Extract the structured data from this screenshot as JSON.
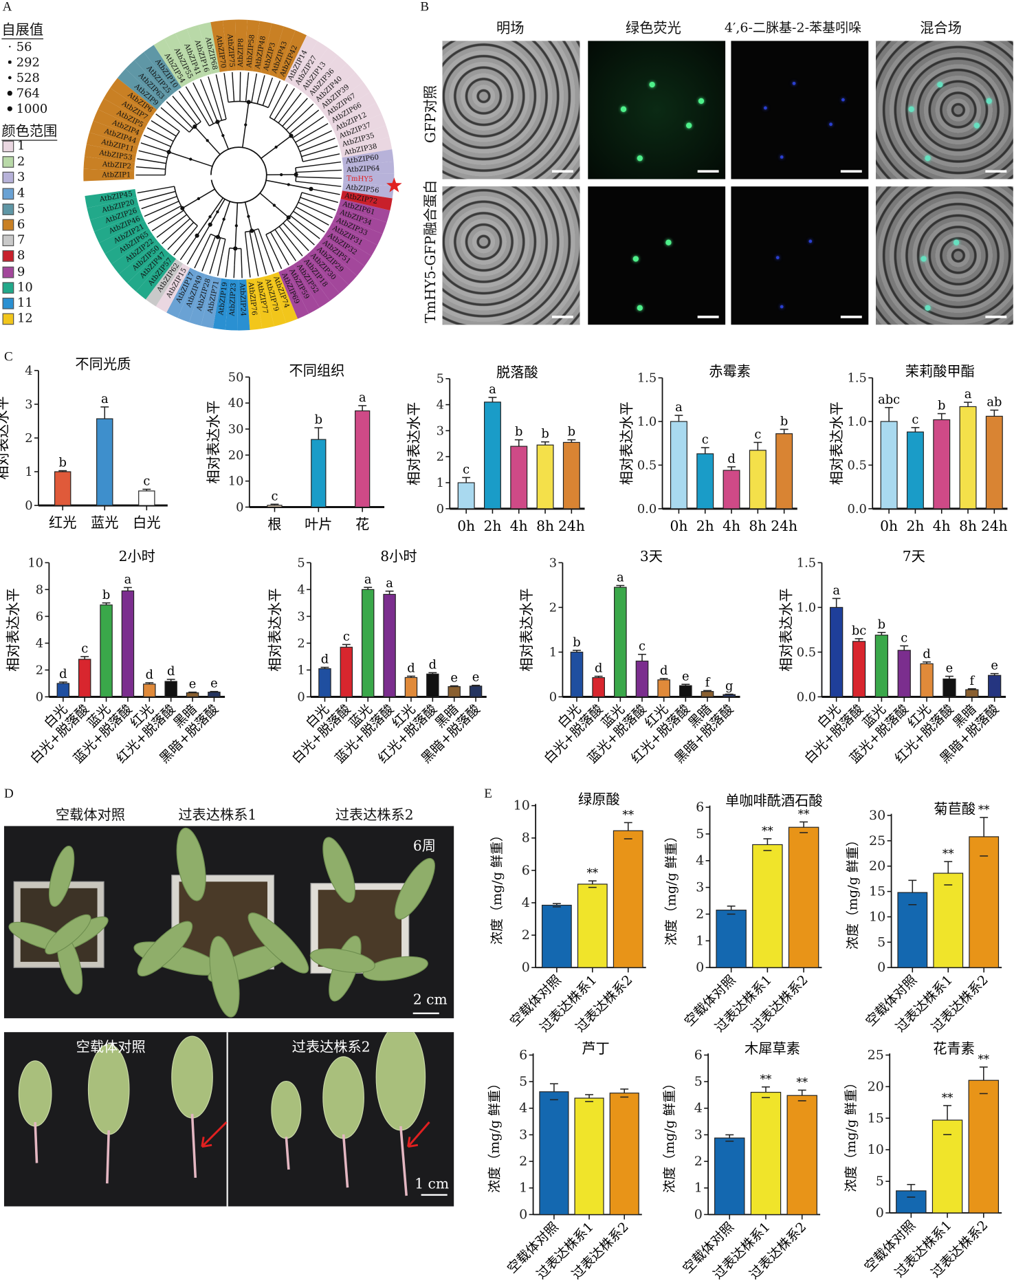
{
  "panel_labels": {
    "a": "A",
    "b": "B",
    "c": "C",
    "d": "D",
    "e": "E"
  },
  "panel_a": {
    "bootstrap_title": "自展值",
    "bootstrap_values": [
      "56",
      "292",
      "528",
      "764",
      "1000"
    ],
    "color_range_title": "颜色范围",
    "clades": [
      {
        "id": "1",
        "color": "#ead7e1"
      },
      {
        "id": "2",
        "color": "#b9d9a8"
      },
      {
        "id": "3",
        "color": "#b7b2d9"
      },
      {
        "id": "4",
        "color": "#6aa2d4"
      },
      {
        "id": "5",
        "color": "#5f97a6"
      },
      {
        "id": "6",
        "color": "#c98024"
      },
      {
        "id": "7",
        "color": "#c9c9c9"
      },
      {
        "id": "8",
        "color": "#c8202b"
      },
      {
        "id": "9",
        "color": "#a3479b"
      },
      {
        "id": "10",
        "color": "#22a98a"
      },
      {
        "id": "11",
        "color": "#2a90d2"
      },
      {
        "id": "12",
        "color": "#f2c61b"
      }
    ],
    "leaves": [
      [
        "AtbZIP1",
        "6"
      ],
      [
        "AtbZIP2",
        "6"
      ],
      [
        "AtbZIP53",
        "6"
      ],
      [
        "AtbZIP11",
        "6"
      ],
      [
        "AtbZIP44",
        "6"
      ],
      [
        "AtbZIP4",
        "6"
      ],
      [
        "AtbZIP5",
        "6"
      ],
      [
        "AtbZIP7",
        "6"
      ],
      [
        "AtbZIP6",
        "6"
      ],
      [
        "AtbZIP9",
        "5"
      ],
      [
        "AtbZIP63",
        "5"
      ],
      [
        "AtbZIP25",
        "5"
      ],
      [
        "AtbZIP10",
        "5"
      ],
      [
        "AtbZIP54",
        "2"
      ],
      [
        "AtbZIP55",
        "2"
      ],
      [
        "AtbZIP41",
        "2"
      ],
      [
        "AtbZIP16",
        "2"
      ],
      [
        "AtbZIP68",
        "2"
      ],
      [
        "AtbZIP70",
        "6"
      ],
      [
        "AtbZIP75",
        "6"
      ],
      [
        "AtbZIP8",
        "6"
      ],
      [
        "AtbZIP58",
        "6"
      ],
      [
        "AtbZIP48",
        "6"
      ],
      [
        "AtbZIP3",
        "6"
      ],
      [
        "AtbZIP43",
        "6"
      ],
      [
        "AtbZIP42",
        "6"
      ],
      [
        "AtbZIP14",
        "1"
      ],
      [
        "AtbZIP27",
        "1"
      ],
      [
        "AtbZIP13",
        "1"
      ],
      [
        "AtbZIP36",
        "1"
      ],
      [
        "AtbZIP40",
        "1"
      ],
      [
        "AtbZIP39",
        "1"
      ],
      [
        "AtbZIP67",
        "1"
      ],
      [
        "AtbZIP66",
        "1"
      ],
      [
        "AtbZIP12",
        "1"
      ],
      [
        "AtbZIP37",
        "1"
      ],
      [
        "AtbZIP35",
        "1"
      ],
      [
        "AtbZIP38",
        "1"
      ],
      [
        "AtbZIP60",
        "3"
      ],
      [
        "AtbZIP64",
        "3"
      ],
      [
        "TmHY5",
        "3"
      ],
      [
        "AtbZIP56",
        "3"
      ],
      [
        "AtbZIP72",
        "8"
      ],
      [
        "AtbZIP61",
        "9"
      ],
      [
        "AtbZIP34",
        "9"
      ],
      [
        "AtbZIP33",
        "9"
      ],
      [
        "AtbZIP31",
        "9"
      ],
      [
        "AtbZIP32",
        "9"
      ],
      [
        "AtbZIP51",
        "9"
      ],
      [
        "AtbZIP29",
        "9"
      ],
      [
        "AtbZIP30",
        "9"
      ],
      [
        "AtbZIP18",
        "9"
      ],
      [
        "AtbZIP52",
        "9"
      ],
      [
        "AtbZIP59",
        "9"
      ],
      [
        "AtbZIP69",
        "9"
      ],
      [
        "AtbZIP74",
        "12"
      ],
      [
        "AtbZIP79",
        "12"
      ],
      [
        "AtbZIP77",
        "12"
      ],
      [
        "AtbZIP76",
        "12"
      ],
      [
        "AtbZIP24",
        "11"
      ],
      [
        "AtbZIP23",
        "11"
      ],
      [
        "AtbZIP19",
        "11"
      ],
      [
        "AtbZIP71",
        "4"
      ],
      [
        "AtbZIP28",
        "4"
      ],
      [
        "AtbZIP49",
        "4"
      ],
      [
        "AtbZIP17",
        "4"
      ],
      [
        "AtbZIP15",
        "1"
      ],
      [
        "AtbZIP62",
        "7"
      ],
      [
        "AtbZIP57",
        "10"
      ],
      [
        "AtbZIP47",
        "10"
      ],
      [
        "AtbZIP50",
        "10"
      ],
      [
        "AtbZIP22",
        "10"
      ],
      [
        "AtbZIP65",
        "10"
      ],
      [
        "AtbZIP21",
        "10"
      ],
      [
        "AtbZIP46",
        "10"
      ],
      [
        "AtbZIP26",
        "10"
      ],
      [
        "AtbZIP20",
        "10"
      ],
      [
        "AtbZIP45",
        "10"
      ]
    ],
    "highlight_leaf": "TmHY5",
    "highlight_color": "#e02020"
  },
  "panel_b": {
    "columns": [
      "明场",
      "绿色荧光",
      "4′,6-二脒基-2-苯基吲哚",
      "混合场"
    ],
    "rows": [
      "GFP对照",
      "TmHY5-GFP融合蛋白"
    ]
  },
  "panel_d": {
    "headers": [
      "空载体对照",
      "过表达株系1",
      "过表达株系2"
    ],
    "age": "6周",
    "scale_top": "2 cm",
    "bottom_labels": [
      "空载体对照",
      "过表达株系2"
    ],
    "scale_bottom": "1 cm"
  },
  "chart_data": [
    {
      "type": "bar",
      "title": "不同光质",
      "ylabel": "相对表达水平",
      "ylim": [
        0,
        4
      ],
      "yticks": [
        "0",
        "1",
        "2",
        "3",
        "4"
      ],
      "categories": [
        "红光",
        "蓝光",
        "白光"
      ],
      "values": [
        1.0,
        2.57,
        0.43
      ],
      "errors": [
        0.03,
        0.35,
        0.05
      ],
      "sig": [
        "b",
        "a",
        "c"
      ],
      "colors": [
        "#e05a3a",
        "#3e8fcc",
        "#ffffff"
      ]
    },
    {
      "type": "bar",
      "title": "不同组织",
      "ylabel": "相对表达水平",
      "ylim": [
        0,
        50
      ],
      "yticks": [
        "0",
        "10",
        "20",
        "30",
        "40",
        "50"
      ],
      "categories": [
        "根",
        "叶片",
        "花"
      ],
      "values": [
        0.7,
        26,
        37
      ],
      "errors": [
        0.4,
        4.5,
        2
      ],
      "sig": [
        "c",
        "b",
        "a"
      ],
      "colors": [
        "#d9c6ad",
        "#1a9cc8",
        "#cf4a87"
      ]
    },
    {
      "type": "bar",
      "title": "脱落酸",
      "ylabel": "相对表达水平",
      "ylim": [
        0,
        5
      ],
      "yticks": [
        "0",
        "1",
        "2",
        "3",
        "4",
        "5"
      ],
      "categories": [
        "0h",
        "2h",
        "4h",
        "8h",
        "24h"
      ],
      "values": [
        1.0,
        4.1,
        2.4,
        2.45,
        2.55
      ],
      "errors": [
        0.2,
        0.18,
        0.25,
        0.12,
        0.1
      ],
      "sig": [
        "c",
        "a",
        "b",
        "b",
        "b"
      ],
      "colors": [
        "#a9d9ef",
        "#1a9cc8",
        "#cf4a87",
        "#f4e04a",
        "#d98433"
      ]
    },
    {
      "type": "bar",
      "title": "赤霉素",
      "ylabel": "相对表达水平",
      "ylim": [
        0,
        1.5
      ],
      "yticks": [
        "0.0",
        "0.5",
        "1.0",
        "1.5"
      ],
      "categories": [
        "0h",
        "2h",
        "4h",
        "8h",
        "24h"
      ],
      "values": [
        1.0,
        0.63,
        0.44,
        0.67,
        0.86
      ],
      "errors": [
        0.07,
        0.07,
        0.04,
        0.09,
        0.05
      ],
      "sig": [
        "a",
        "c",
        "d",
        "c",
        "b"
      ],
      "colors": [
        "#a9d9ef",
        "#1a9cc8",
        "#cf4a87",
        "#f4e04a",
        "#d98433"
      ]
    },
    {
      "type": "bar",
      "title": "茉莉酸甲酯",
      "ylabel": "相对表达水平",
      "ylim": [
        0,
        1.5
      ],
      "yticks": [
        "0.0",
        "0.5",
        "1.0",
        "1.5"
      ],
      "categories": [
        "0h",
        "2h",
        "4h",
        "8h",
        "24h"
      ],
      "values": [
        1.0,
        0.88,
        1.02,
        1.17,
        1.06
      ],
      "errors": [
        0.16,
        0.05,
        0.07,
        0.05,
        0.07
      ],
      "sig": [
        "abc",
        "c",
        "b",
        "a",
        "ab"
      ],
      "colors": [
        "#a9d9ef",
        "#1a9cc8",
        "#cf4a87",
        "#f4e04a",
        "#d98433"
      ]
    },
    {
      "type": "bar",
      "title": "2小时",
      "ylabel": "相对表达水平",
      "ylim": [
        0,
        10
      ],
      "yticks": [
        "0",
        "2",
        "4",
        "6",
        "8",
        "10"
      ],
      "categories": [
        "白光",
        "白光+脱落酸",
        "蓝光",
        "蓝光+脱落酸",
        "红光",
        "红光+脱落酸",
        "黑暗",
        "黑暗+脱落酸"
      ],
      "values": [
        1.0,
        2.8,
        6.85,
        7.9,
        0.95,
        1.15,
        0.3,
        0.35
      ],
      "errors": [
        0.1,
        0.2,
        0.15,
        0.25,
        0.1,
        0.15,
        0.05,
        0.05
      ],
      "sig": [
        "d",
        "c",
        "b",
        "a",
        "d",
        "d",
        "e",
        "e"
      ],
      "colors": [
        "#1f4fa0",
        "#d8262e",
        "#3aa84a",
        "#7b2e8e",
        "#e08a3a",
        "#111111",
        "#8a6030",
        "#253560"
      ]
    },
    {
      "type": "bar",
      "title": "8小时",
      "ylabel": "相对表达水平",
      "ylim": [
        0,
        5
      ],
      "yticks": [
        "0",
        "1",
        "2",
        "3",
        "4",
        "5"
      ],
      "categories": [
        "白光",
        "白光+脱落酸",
        "蓝光",
        "蓝光+脱落酸",
        "红光",
        "红光+脱落酸",
        "黑暗",
        "黑暗+脱落酸"
      ],
      "values": [
        1.05,
        1.85,
        4.0,
        3.82,
        0.72,
        0.85,
        0.38,
        0.4
      ],
      "errors": [
        0.05,
        0.1,
        0.08,
        0.12,
        0.05,
        0.05,
        0.03,
        0.03
      ],
      "sig": [
        "d",
        "c",
        "a",
        "a",
        "d",
        "d",
        "e",
        "e"
      ],
      "colors": [
        "#1f4fa0",
        "#d8262e",
        "#3aa84a",
        "#7b2e8e",
        "#e08a3a",
        "#111111",
        "#8a6030",
        "#253560"
      ]
    },
    {
      "type": "bar",
      "title": "3天",
      "ylabel": "相对表达水平",
      "ylim": [
        0,
        3
      ],
      "yticks": [
        "0",
        "1",
        "2",
        "3"
      ],
      "categories": [
        "白光",
        "白光+脱落酸",
        "蓝光",
        "蓝光+脱落酸",
        "红光",
        "红光+脱落酸",
        "黑暗",
        "黑暗+脱落酸"
      ],
      "values": [
        1.0,
        0.43,
        2.45,
        0.8,
        0.38,
        0.25,
        0.12,
        0.05
      ],
      "errors": [
        0.04,
        0.03,
        0.04,
        0.15,
        0.03,
        0.03,
        0.02,
        0.01
      ],
      "sig": [
        "b",
        "d",
        "a",
        "c",
        "d",
        "e",
        "f",
        "g"
      ],
      "colors": [
        "#1f4fa0",
        "#d8262e",
        "#3aa84a",
        "#7b2e8e",
        "#e08a3a",
        "#111111",
        "#8a6030",
        "#253560"
      ]
    },
    {
      "type": "bar",
      "title": "7天",
      "ylabel": "相对表达水平",
      "ylim": [
        0,
        1.5
      ],
      "yticks": [
        "0.0",
        "0.5",
        "1.0",
        "1.5"
      ],
      "categories": [
        "白光",
        "白光+脱落酸",
        "蓝光",
        "蓝光+脱落酸",
        "红光",
        "红光+脱落酸",
        "黑暗",
        "黑暗+脱落酸"
      ],
      "values": [
        1.0,
        0.62,
        0.69,
        0.52,
        0.37,
        0.2,
        0.08,
        0.24
      ],
      "errors": [
        0.1,
        0.03,
        0.03,
        0.05,
        0.02,
        0.03,
        0.01,
        0.02
      ],
      "sig": [
        "a",
        "bc",
        "b",
        "c",
        "d",
        "e",
        "f",
        "e"
      ],
      "colors": [
        "#1f3f9a",
        "#d8262e",
        "#3aa84a",
        "#7b2e8e",
        "#e08a3a",
        "#111111",
        "#8a6030",
        "#253580"
      ]
    },
    {
      "type": "bar",
      "title": "绿原酸",
      "ylabel": "浓度（mg/g 鲜重）",
      "ylim": [
        0,
        10
      ],
      "yticks": [
        "0",
        "2",
        "4",
        "6",
        "8",
        "10"
      ],
      "categories": [
        "空载体对照",
        "过表达株系1",
        "过表达株系2"
      ],
      "values": [
        3.85,
        5.15,
        8.45
      ],
      "errors": [
        0.1,
        0.2,
        0.5
      ],
      "sig": [
        "",
        "**",
        "**"
      ],
      "colors": [
        "#1468b0",
        "#f0e42a",
        "#e89418"
      ]
    },
    {
      "type": "bar",
      "title": "单咖啡酰酒石酸",
      "ylabel": "浓度（mg/g 鲜重）",
      "ylim": [
        0,
        6
      ],
      "yticks": [
        "0",
        "1",
        "2",
        "3",
        "4",
        "5",
        "6"
      ],
      "categories": [
        "空载体对照",
        "过表达株系1",
        "过表达株系2"
      ],
      "values": [
        2.15,
        4.6,
        5.25
      ],
      "errors": [
        0.15,
        0.22,
        0.2
      ],
      "sig": [
        "",
        "**",
        "**"
      ],
      "colors": [
        "#1468b0",
        "#f0e42a",
        "#e89418"
      ]
    },
    {
      "type": "bar",
      "title": "菊苣酸",
      "ylabel": "浓度（mg/g 鲜重）",
      "ylim": [
        0,
        30
      ],
      "yticks": [
        "0",
        "5",
        "10",
        "15",
        "20",
        "25",
        "30"
      ],
      "categories": [
        "空载体对照",
        "过表达株系1",
        "过表达株系2"
      ],
      "values": [
        14.8,
        18.6,
        25.8
      ],
      "errors": [
        2.4,
        2.3,
        3.8
      ],
      "sig": [
        "",
        "**",
        "**"
      ],
      "colors": [
        "#1468b0",
        "#f0e42a",
        "#e89418"
      ]
    },
    {
      "type": "bar",
      "title": "芦丁",
      "ylabel": "浓度（mg/g 鲜重）",
      "ylim": [
        0,
        6
      ],
      "yticks": [
        "0",
        "1",
        "2",
        "3",
        "4",
        "5",
        "6"
      ],
      "categories": [
        "空载体对照",
        "过表达株系1",
        "过表达株系2"
      ],
      "values": [
        4.62,
        4.38,
        4.57
      ],
      "errors": [
        0.3,
        0.13,
        0.15
      ],
      "sig": [
        "",
        "",
        ""
      ],
      "colors": [
        "#1468b0",
        "#f0e42a",
        "#e89418"
      ]
    },
    {
      "type": "bar",
      "title": "木犀草素",
      "ylabel": "浓度（mg/g 鲜重）",
      "ylim": [
        0,
        6
      ],
      "yticks": [
        "0",
        "1",
        "2",
        "3",
        "4",
        "5",
        "6"
      ],
      "categories": [
        "空载体对照",
        "过表达株系1",
        "过表达株系2"
      ],
      "values": [
        2.88,
        4.6,
        4.48
      ],
      "errors": [
        0.12,
        0.2,
        0.2
      ],
      "sig": [
        "",
        "**",
        "**"
      ],
      "colors": [
        "#1468b0",
        "#f0e42a",
        "#e89418"
      ]
    },
    {
      "type": "bar",
      "title": "花青素",
      "ylabel": "浓度（mg/g 鲜重）",
      "ylim": [
        0,
        25
      ],
      "yticks": [
        "0",
        "5",
        "10",
        "15",
        "20",
        "25"
      ],
      "categories": [
        "空载体对照",
        "过表达株系1",
        "过表达株系2"
      ],
      "values": [
        3.5,
        14.7,
        21.0
      ],
      "errors": [
        1.0,
        2.3,
        2.1
      ],
      "sig": [
        "",
        "**",
        "**"
      ],
      "colors": [
        "#1468b0",
        "#f0e42a",
        "#e89418"
      ]
    }
  ]
}
